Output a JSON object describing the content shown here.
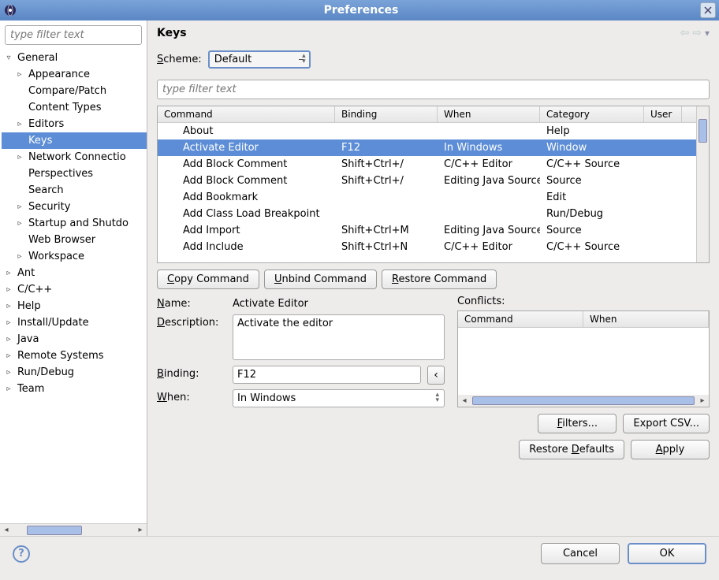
{
  "window": {
    "title": "Preferences"
  },
  "sidebar": {
    "filter_placeholder": "type filter text",
    "items": [
      {
        "label": "General",
        "level": 0,
        "expandable": true,
        "expanded": true
      },
      {
        "label": "Appearance",
        "level": 1,
        "expandable": true,
        "expanded": false
      },
      {
        "label": "Compare/Patch",
        "level": 1,
        "expandable": false
      },
      {
        "label": "Content Types",
        "level": 1,
        "expandable": false
      },
      {
        "label": "Editors",
        "level": 1,
        "expandable": true,
        "expanded": false
      },
      {
        "label": "Keys",
        "level": 1,
        "expandable": false,
        "selected": true
      },
      {
        "label": "Network Connectio",
        "level": 1,
        "expandable": true,
        "expanded": false
      },
      {
        "label": "Perspectives",
        "level": 1,
        "expandable": false
      },
      {
        "label": "Search",
        "level": 1,
        "expandable": false
      },
      {
        "label": "Security",
        "level": 1,
        "expandable": true,
        "expanded": false
      },
      {
        "label": "Startup and Shutdo",
        "level": 1,
        "expandable": true,
        "expanded": false
      },
      {
        "label": "Web Browser",
        "level": 1,
        "expandable": false
      },
      {
        "label": "Workspace",
        "level": 1,
        "expandable": true,
        "expanded": false
      },
      {
        "label": "Ant",
        "level": 0,
        "expandable": true,
        "expanded": false
      },
      {
        "label": "C/C++",
        "level": 0,
        "expandable": true,
        "expanded": false
      },
      {
        "label": "Help",
        "level": 0,
        "expandable": true,
        "expanded": false
      },
      {
        "label": "Install/Update",
        "level": 0,
        "expandable": true,
        "expanded": false
      },
      {
        "label": "Java",
        "level": 0,
        "expandable": true,
        "expanded": false
      },
      {
        "label": "Remote Systems",
        "level": 0,
        "expandable": true,
        "expanded": false
      },
      {
        "label": "Run/Debug",
        "level": 0,
        "expandable": true,
        "expanded": false
      },
      {
        "label": "Team",
        "level": 0,
        "expandable": true,
        "expanded": false
      }
    ]
  },
  "panel": {
    "title": "Keys",
    "scheme_label": "Scheme:",
    "scheme_value": "Default",
    "table_filter_placeholder": "type filter text",
    "columns": {
      "command": "Command",
      "binding": "Binding",
      "when": "When",
      "category": "Category",
      "user": "User"
    },
    "rows": [
      {
        "command": "About",
        "binding": "",
        "when": "",
        "category": "Help"
      },
      {
        "command": "Activate Editor",
        "binding": "F12",
        "when": "In Windows",
        "category": "Window",
        "selected": true
      },
      {
        "command": "Add Block Comment",
        "binding": "Shift+Ctrl+/",
        "when": "C/C++ Editor",
        "category": "C/C++ Source"
      },
      {
        "command": "Add Block Comment",
        "binding": "Shift+Ctrl+/",
        "when": "Editing Java Source",
        "category": "Source"
      },
      {
        "command": "Add Bookmark",
        "binding": "",
        "when": "",
        "category": "Edit"
      },
      {
        "command": "Add Class Load Breakpoint",
        "binding": "",
        "when": "",
        "category": "Run/Debug"
      },
      {
        "command": "Add Import",
        "binding": "Shift+Ctrl+M",
        "when": "Editing Java Source",
        "category": "Source"
      },
      {
        "command": "Add Include",
        "binding": "Shift+Ctrl+N",
        "when": "C/C++ Editor",
        "category": "C/C++ Source"
      }
    ],
    "buttons": {
      "copy": "Copy Command",
      "unbind": "Unbind Command",
      "restore": "Restore Command"
    },
    "detail": {
      "name_label": "Name:",
      "name_value": "Activate Editor",
      "desc_label": "Description:",
      "desc_value": "Activate the editor",
      "binding_label": "Binding:",
      "binding_value": "F12",
      "when_label": "When:",
      "when_value": "In Windows"
    },
    "conflicts": {
      "label": "Conflicts:",
      "col_command": "Command",
      "col_when": "When"
    },
    "actions": {
      "filters": "Filters...",
      "export": "Export CSV...",
      "restore_defaults": "Restore Defaults",
      "apply": "Apply"
    }
  },
  "footer": {
    "cancel": "Cancel",
    "ok": "OK"
  }
}
